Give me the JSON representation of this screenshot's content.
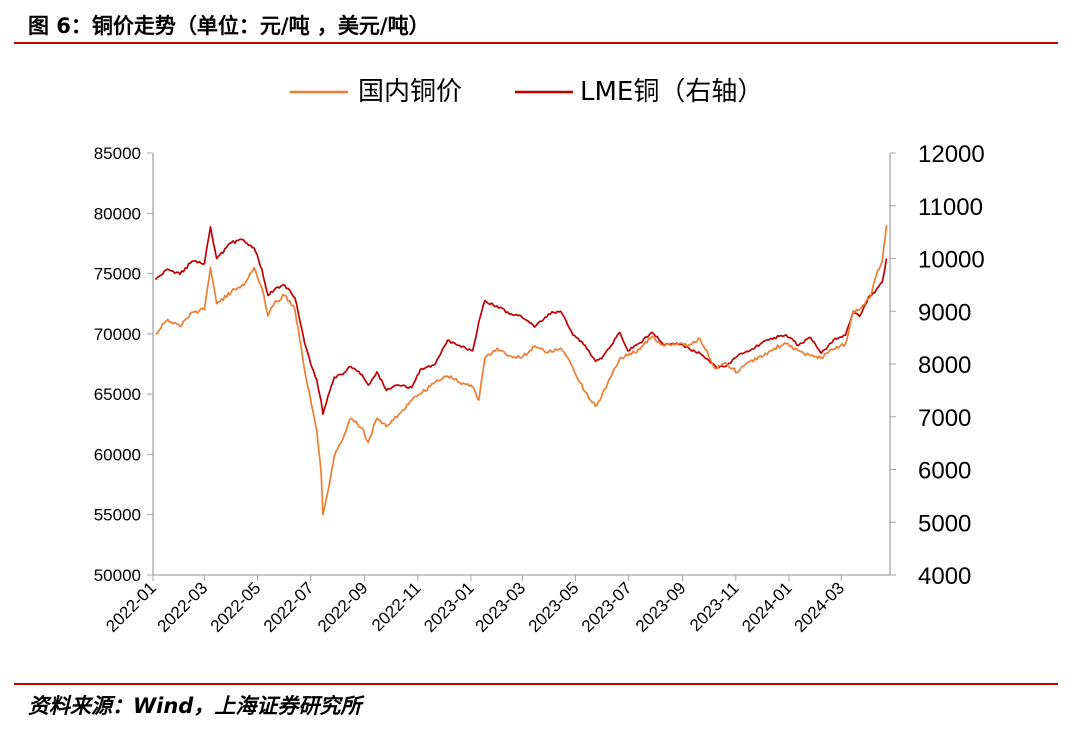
{
  "figure": {
    "title": "图 6：铜价走势（单位：元/吨 ，美元/吨）",
    "source": "资料来源：Wind，上海证券研究所"
  },
  "colors": {
    "rule": "#c00000",
    "domestic": "#ed7d31",
    "lme": "#c00000",
    "axis": "#a6a6a6"
  },
  "chart_data": {
    "type": "line",
    "grid": false,
    "legend_position": "top-center",
    "x_tick_labels": [
      "2022-01",
      "2022-03",
      "2022-05",
      "2022-07",
      "2022-09",
      "2022-11",
      "2023-01",
      "2023-03",
      "2023-05",
      "2023-07",
      "2023-09",
      "2023-11",
      "2024-01",
      "2024-03"
    ],
    "left_axis": {
      "range": [
        50000,
        85000
      ],
      "ticks": [
        50000,
        55000,
        60000,
        65000,
        70000,
        75000,
        80000,
        85000
      ]
    },
    "right_axis": {
      "range": [
        4000,
        12000
      ],
      "ticks": [
        4000,
        5000,
        6000,
        7000,
        8000,
        9000,
        10000,
        11000,
        12000
      ]
    },
    "series": [
      {
        "name": "国内铜价",
        "axis": "left",
        "color": "#ed7d31",
        "points": [
          [
            "2022-01-04",
            70000
          ],
          [
            "2022-01-18",
            71200
          ],
          [
            "2022-02-01",
            70600
          ],
          [
            "2022-02-15",
            71800
          ],
          [
            "2022-03-01",
            72000
          ],
          [
            "2022-03-08",
            75500
          ],
          [
            "2022-03-15",
            72500
          ],
          [
            "2022-04-01",
            73500
          ],
          [
            "2022-04-15",
            74000
          ],
          [
            "2022-04-27",
            75500
          ],
          [
            "2022-05-06",
            73800
          ],
          [
            "2022-05-13",
            71500
          ],
          [
            "2022-05-20",
            72500
          ],
          [
            "2022-06-01",
            73200
          ],
          [
            "2022-06-13",
            72000
          ],
          [
            "2022-06-24",
            67000
          ],
          [
            "2022-07-01",
            64500
          ],
          [
            "2022-07-08",
            62000
          ],
          [
            "2022-07-13",
            58500
          ],
          [
            "2022-07-15",
            55000
          ],
          [
            "2022-07-21",
            57000
          ],
          [
            "2022-07-28",
            59800
          ],
          [
            "2022-08-05",
            61000
          ],
          [
            "2022-08-16",
            63000
          ],
          [
            "2022-08-29",
            62200
          ],
          [
            "2022-09-05",
            61000
          ],
          [
            "2022-09-15",
            63000
          ],
          [
            "2022-09-26",
            62300
          ],
          [
            "2022-10-10",
            63300
          ],
          [
            "2022-10-25",
            64500
          ],
          [
            "2022-11-04",
            65000
          ],
          [
            "2022-11-21",
            66000
          ],
          [
            "2022-12-05",
            66500
          ],
          [
            "2022-12-19",
            66000
          ],
          [
            "2023-01-03",
            65600
          ],
          [
            "2023-01-10",
            64500
          ],
          [
            "2023-01-17",
            68000
          ],
          [
            "2023-01-31",
            68800
          ],
          [
            "2023-02-14",
            68200
          ],
          [
            "2023-02-28",
            68000
          ],
          [
            "2023-03-15",
            69000
          ],
          [
            "2023-03-31",
            68500
          ],
          [
            "2023-04-14",
            68800
          ],
          [
            "2023-04-28",
            67200
          ],
          [
            "2023-05-12",
            65200
          ],
          [
            "2023-05-24",
            64000
          ],
          [
            "2023-05-31",
            64800
          ],
          [
            "2023-06-09",
            66300
          ],
          [
            "2023-06-21",
            68000
          ],
          [
            "2023-06-30",
            68200
          ],
          [
            "2023-07-14",
            68700
          ],
          [
            "2023-07-28",
            69800
          ],
          [
            "2023-08-11",
            69000
          ],
          [
            "2023-08-25",
            69200
          ],
          [
            "2023-09-08",
            69100
          ],
          [
            "2023-09-21",
            69600
          ],
          [
            "2023-10-09",
            67100
          ],
          [
            "2023-10-20",
            67600
          ],
          [
            "2023-11-03",
            66800
          ],
          [
            "2023-11-17",
            67700
          ],
          [
            "2023-12-01",
            68100
          ],
          [
            "2023-12-15",
            68800
          ],
          [
            "2023-12-29",
            69200
          ],
          [
            "2024-01-12",
            68600
          ],
          [
            "2024-01-26",
            68200
          ],
          [
            "2024-02-07",
            68000
          ],
          [
            "2024-02-21",
            68700
          ],
          [
            "2024-03-06",
            69200
          ],
          [
            "2024-03-15",
            71800
          ],
          [
            "2024-03-22",
            72000
          ],
          [
            "2024-04-03",
            73000
          ],
          [
            "2024-04-10",
            74800
          ],
          [
            "2024-04-17",
            76000
          ],
          [
            "2024-04-22",
            79000
          ]
        ]
      },
      {
        "name": "LME铜（右轴）",
        "axis": "right",
        "color": "#c00000",
        "points": [
          [
            "2022-01-04",
            9600
          ],
          [
            "2022-01-18",
            9800
          ],
          [
            "2022-02-01",
            9700
          ],
          [
            "2022-02-15",
            9950
          ],
          [
            "2022-03-01",
            9900
          ],
          [
            "2022-03-08",
            10600
          ],
          [
            "2022-03-15",
            10000
          ],
          [
            "2022-04-01",
            10300
          ],
          [
            "2022-04-15",
            10350
          ],
          [
            "2022-04-27",
            10200
          ],
          [
            "2022-05-06",
            9800
          ],
          [
            "2022-05-13",
            9300
          ],
          [
            "2022-05-20",
            9400
          ],
          [
            "2022-06-01",
            9500
          ],
          [
            "2022-06-13",
            9250
          ],
          [
            "2022-06-24",
            8400
          ],
          [
            "2022-07-01",
            8000
          ],
          [
            "2022-07-08",
            7700
          ],
          [
            "2022-07-13",
            7300
          ],
          [
            "2022-07-15",
            7050
          ],
          [
            "2022-07-21",
            7400
          ],
          [
            "2022-07-28",
            7750
          ],
          [
            "2022-08-05",
            7800
          ],
          [
            "2022-08-16",
            7950
          ],
          [
            "2022-08-29",
            7800
          ],
          [
            "2022-09-05",
            7600
          ],
          [
            "2022-09-15",
            7850
          ],
          [
            "2022-09-26",
            7500
          ],
          [
            "2022-10-10",
            7600
          ],
          [
            "2022-10-25",
            7550
          ],
          [
            "2022-11-04",
            7900
          ],
          [
            "2022-11-21",
            8000
          ],
          [
            "2022-12-05",
            8450
          ],
          [
            "2022-12-19",
            8350
          ],
          [
            "2023-01-03",
            8250
          ],
          [
            "2023-01-10",
            8800
          ],
          [
            "2023-01-17",
            9200
          ],
          [
            "2023-01-31",
            9100
          ],
          [
            "2023-02-14",
            8950
          ],
          [
            "2023-02-28",
            8900
          ],
          [
            "2023-03-15",
            8700
          ],
          [
            "2023-03-31",
            8950
          ],
          [
            "2023-04-14",
            9000
          ],
          [
            "2023-04-28",
            8550
          ],
          [
            "2023-05-12",
            8350
          ],
          [
            "2023-05-24",
            8050
          ],
          [
            "2023-05-31",
            8100
          ],
          [
            "2023-06-09",
            8300
          ],
          [
            "2023-06-21",
            8600
          ],
          [
            "2023-06-30",
            8250
          ],
          [
            "2023-07-14",
            8400
          ],
          [
            "2023-07-28",
            8600
          ],
          [
            "2023-08-11",
            8350
          ],
          [
            "2023-08-25",
            8400
          ],
          [
            "2023-09-08",
            8300
          ],
          [
            "2023-09-21",
            8200
          ],
          [
            "2023-10-09",
            7950
          ],
          [
            "2023-10-20",
            7950
          ],
          [
            "2023-11-03",
            8150
          ],
          [
            "2023-11-17",
            8250
          ],
          [
            "2023-12-01",
            8400
          ],
          [
            "2023-12-15",
            8500
          ],
          [
            "2023-12-29",
            8550
          ],
          [
            "2024-01-12",
            8350
          ],
          [
            "2024-01-26",
            8500
          ],
          [
            "2024-02-07",
            8200
          ],
          [
            "2024-02-21",
            8450
          ],
          [
            "2024-03-06",
            8550
          ],
          [
            "2024-03-15",
            9000
          ],
          [
            "2024-03-22",
            8900
          ],
          [
            "2024-04-03",
            9300
          ],
          [
            "2024-04-10",
            9400
          ],
          [
            "2024-04-17",
            9550
          ],
          [
            "2024-04-22",
            10000
          ]
        ]
      }
    ]
  }
}
